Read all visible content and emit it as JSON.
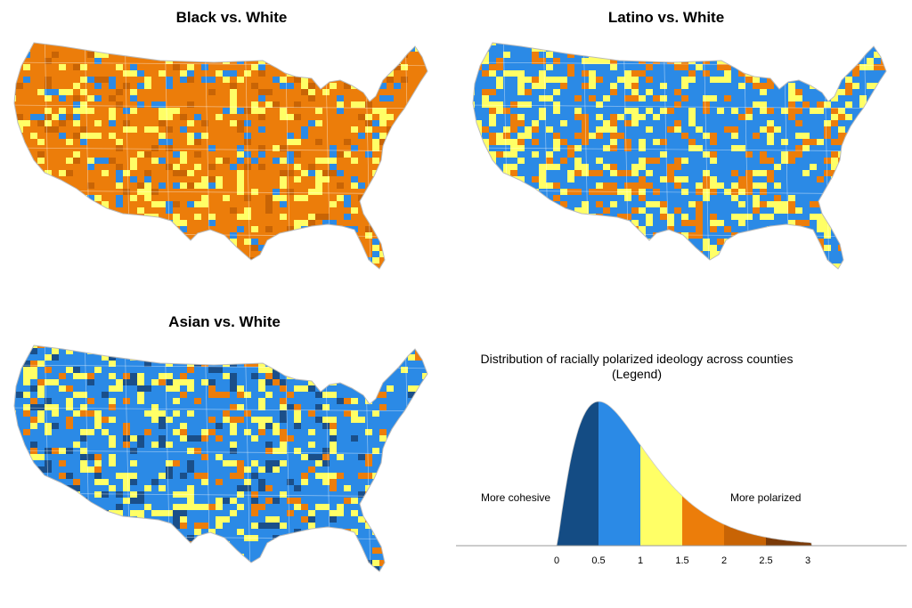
{
  "maps": [
    {
      "title": "Black vs. White",
      "base_color": "#ec7d0a",
      "tile_mix": [
        "#ec7d0a",
        "#ec7d0a",
        "#ec7d0a",
        "#ffff66",
        "#ffff66",
        "#c86405",
        "#2b8ae6"
      ]
    },
    {
      "title": "Latino vs. White",
      "base_color": "#2b8ae6",
      "tile_mix": [
        "#2b8ae6",
        "#2b8ae6",
        "#ffff66",
        "#ffff66",
        "#ffff66",
        "#ec7d0a",
        "#ec7d0a"
      ]
    },
    {
      "title": "Asian vs. White",
      "base_color": "#2b8ae6",
      "tile_mix": [
        "#2b8ae6",
        "#2b8ae6",
        "#2b8ae6",
        "#ffff66",
        "#ffff66",
        "#ec7d0a",
        "#1a4f8a"
      ]
    }
  ],
  "legend": {
    "title_line1": "Distribution of racially polarized ideology across counties",
    "title_line2": "(Legend)",
    "left_note": "More cohesive",
    "right_note": "More polarized",
    "ticks": [
      "0",
      "0.5",
      "1",
      "1.5",
      "2",
      "2.5",
      "3"
    ],
    "tick_values": [
      0,
      0.5,
      1,
      1.5,
      2,
      2.5,
      3
    ],
    "bands": [
      {
        "from": 0,
        "to": 0.5,
        "color": "#144c84"
      },
      {
        "from": 0.5,
        "to": 1,
        "color": "#2b8ae6"
      },
      {
        "from": 1,
        "to": 1.5,
        "color": "#ffff66"
      },
      {
        "from": 1.5,
        "to": 2,
        "color": "#ec7d0a"
      },
      {
        "from": 2,
        "to": 2.5,
        "color": "#c86405"
      },
      {
        "from": 2.5,
        "to": 3,
        "color": "#7a3a08"
      }
    ]
  }
}
